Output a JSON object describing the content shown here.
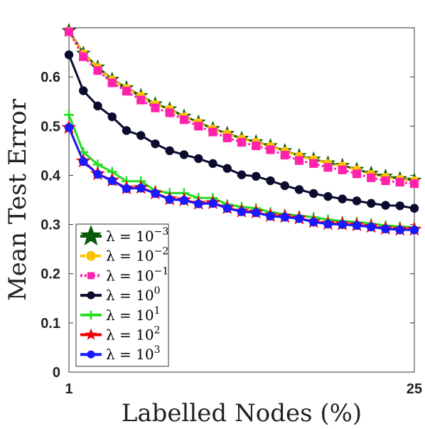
{
  "chart_data": {
    "type": "line",
    "title": "",
    "xlabel": "Labelled Nodes (%)",
    "ylabel": "Mean Test Error",
    "xlim": [
      1,
      25
    ],
    "ylim": [
      0,
      0.7
    ],
    "xticks": [
      1,
      25
    ],
    "xtick_labels": [
      "1",
      "25"
    ],
    "yticks": [
      0,
      0.1,
      0.2,
      0.3,
      0.4,
      0.5,
      0.6
    ],
    "ytick_labels": [
      "0",
      "0.1",
      "0.2",
      "0.3",
      "0.4",
      "0.5",
      "0.6"
    ],
    "grid": false,
    "legend_position": "bottom-left",
    "x": [
      1,
      2,
      3,
      4,
      5,
      6,
      7,
      8,
      9,
      10,
      11,
      12,
      13,
      14,
      15,
      16,
      17,
      18,
      19,
      20,
      21,
      22,
      23,
      24,
      25
    ],
    "series": [
      {
        "name": "λ = 10⁻³",
        "label_base": "λ = 10",
        "label_exp": "−3",
        "color": "#0a5a0a",
        "marker": "star",
        "style": "solid",
        "values": [
          0.694,
          0.648,
          0.62,
          0.595,
          0.578,
          0.562,
          0.545,
          0.535,
          0.52,
          0.508,
          0.495,
          0.485,
          0.475,
          0.468,
          0.46,
          0.45,
          0.44,
          0.433,
          0.425,
          0.42,
          0.412,
          0.404,
          0.398,
          0.393,
          0.39
        ]
      },
      {
        "name": "λ = 10⁻²",
        "label_base": "λ = 10",
        "label_exp": "−2",
        "color": "#ffc000",
        "marker": "circle",
        "style": "dashed",
        "values": [
          0.693,
          0.647,
          0.619,
          0.594,
          0.577,
          0.561,
          0.544,
          0.534,
          0.519,
          0.507,
          0.494,
          0.484,
          0.474,
          0.467,
          0.459,
          0.449,
          0.439,
          0.432,
          0.424,
          0.419,
          0.411,
          0.402,
          0.396,
          0.392,
          0.389
        ]
      },
      {
        "name": "λ = 10⁻¹",
        "label_base": "λ = 10",
        "label_exp": "−1",
        "color": "#ff22aa",
        "marker": "square",
        "style": "dotted",
        "values": [
          0.692,
          0.641,
          0.613,
          0.588,
          0.571,
          0.553,
          0.537,
          0.527,
          0.513,
          0.5,
          0.488,
          0.476,
          0.467,
          0.46,
          0.452,
          0.441,
          0.43,
          0.424,
          0.416,
          0.411,
          0.403,
          0.395,
          0.389,
          0.386,
          0.383
        ]
      },
      {
        "name": "λ = 10⁰",
        "label_base": "λ = 10",
        "label_exp": "0",
        "color": "#0b0b2e",
        "marker": "circle",
        "style": "solid",
        "values": [
          0.645,
          0.572,
          0.541,
          0.519,
          0.491,
          0.481,
          0.464,
          0.45,
          0.442,
          0.434,
          0.424,
          0.414,
          0.401,
          0.398,
          0.389,
          0.379,
          0.371,
          0.363,
          0.357,
          0.352,
          0.348,
          0.343,
          0.339,
          0.338,
          0.333
        ]
      },
      {
        "name": "λ = 10¹",
        "label_base": "λ = 10",
        "label_exp": "1",
        "color": "#22dd22",
        "marker": "plus",
        "style": "solid",
        "values": [
          0.523,
          0.447,
          0.422,
          0.407,
          0.388,
          0.388,
          0.369,
          0.364,
          0.364,
          0.354,
          0.354,
          0.341,
          0.336,
          0.333,
          0.325,
          0.321,
          0.318,
          0.315,
          0.31,
          0.307,
          0.305,
          0.302,
          0.298,
          0.296,
          0.294
        ]
      },
      {
        "name": "λ = 10²",
        "label_base": "λ = 10",
        "label_exp": "2",
        "color": "#ee0000",
        "marker": "star",
        "style": "solid",
        "values": [
          0.497,
          0.429,
          0.403,
          0.39,
          0.374,
          0.375,
          0.364,
          0.352,
          0.35,
          0.343,
          0.344,
          0.334,
          0.327,
          0.325,
          0.318,
          0.316,
          0.313,
          0.306,
          0.302,
          0.301,
          0.299,
          0.296,
          0.292,
          0.29,
          0.29
        ]
      },
      {
        "name": "λ = 10³",
        "label_base": "λ = 10",
        "label_exp": "3",
        "color": "#1a1aff",
        "marker": "circle",
        "style": "solid",
        "values": [
          0.497,
          0.428,
          0.402,
          0.389,
          0.373,
          0.374,
          0.363,
          0.351,
          0.349,
          0.342,
          0.343,
          0.333,
          0.326,
          0.324,
          0.317,
          0.315,
          0.312,
          0.305,
          0.301,
          0.3,
          0.298,
          0.295,
          0.291,
          0.289,
          0.289
        ]
      }
    ]
  }
}
